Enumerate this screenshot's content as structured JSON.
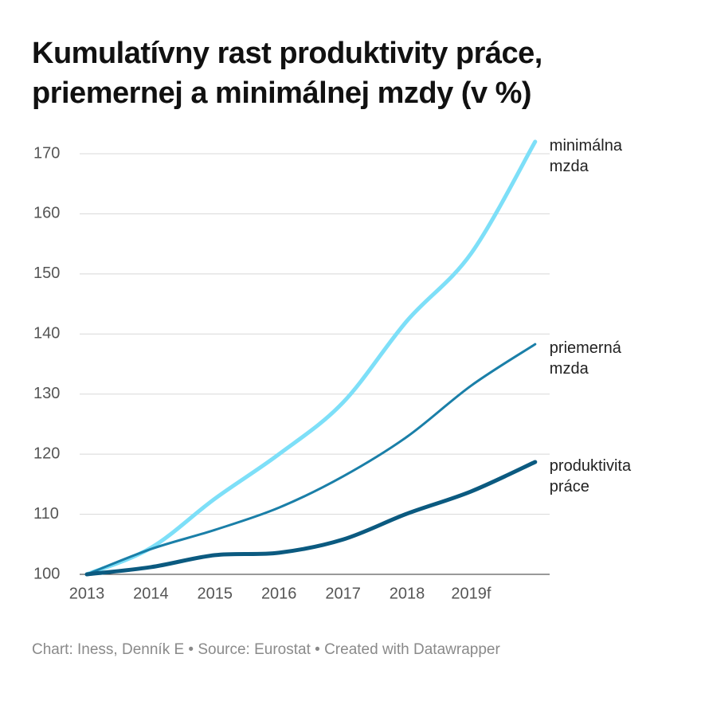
{
  "chart_data": {
    "type": "line",
    "title": "Kumulatívny rast produktivity práce, priemernej a minimálnej mzdy (v %)",
    "footer": "Chart: Iness, Denník E • Source: Eurostat • Created with Datawrapper",
    "categories": [
      "2013",
      "2014",
      "2015",
      "2016",
      "2017",
      "2018",
      "2019f",
      null
    ],
    "series": [
      {
        "name": "minimálna mzda",
        "color": "#7ddff8",
        "values": [
          100,
          104.4,
          112.6,
          120.0,
          128.6,
          142.2,
          153.4,
          172.0
        ]
      },
      {
        "name": "priemerná mzda",
        "color": "#1a7fa8",
        "values": [
          100,
          104.2,
          107.4,
          111.1,
          116.3,
          122.9,
          131.4,
          138.3
        ]
      },
      {
        "name": "produktivita práce",
        "color": "#0b5a80",
        "values": [
          100,
          101.2,
          103.2,
          103.6,
          105.8,
          110.1,
          113.8,
          118.7
        ]
      }
    ],
    "ylim": [
      100,
      170
    ],
    "yticks": [
      100,
      110,
      120,
      130,
      140,
      150,
      160,
      170
    ],
    "grid": true
  }
}
